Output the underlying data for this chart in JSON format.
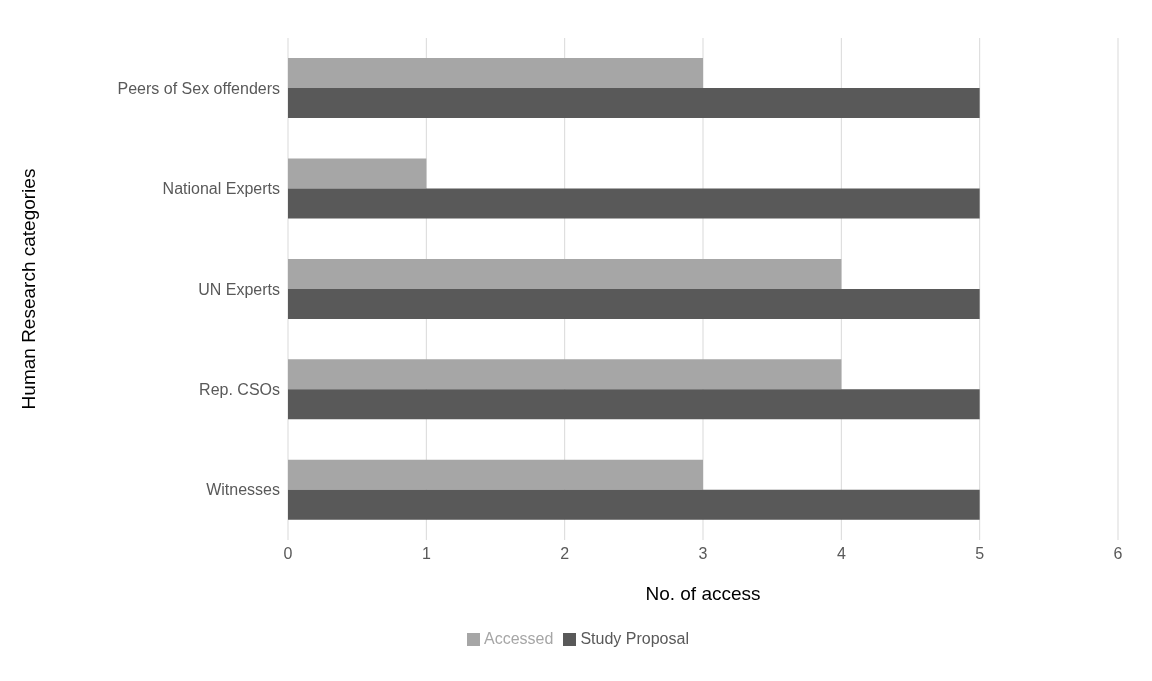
{
  "chart_data": {
    "type": "bar",
    "orientation": "horizontal",
    "xlabel": "No. of access",
    "ylabel": "Human Research categories",
    "categories": [
      "Peers of Sex offenders",
      "National Experts",
      "UN Experts",
      "Rep. CSOs",
      "Witnesses"
    ],
    "series": [
      {
        "name": "Accessed",
        "color": "#a6a6a6",
        "values": [
          3,
          1,
          4,
          4,
          3
        ]
      },
      {
        "name": "Study Proposal",
        "color": "#595959",
        "values": [
          5,
          5,
          5,
          5,
          5
        ]
      }
    ],
    "xlim": [
      0,
      6
    ],
    "xticks": [
      0,
      1,
      2,
      3,
      4,
      5,
      6
    ],
    "grid": "x",
    "legend": "bottom"
  }
}
